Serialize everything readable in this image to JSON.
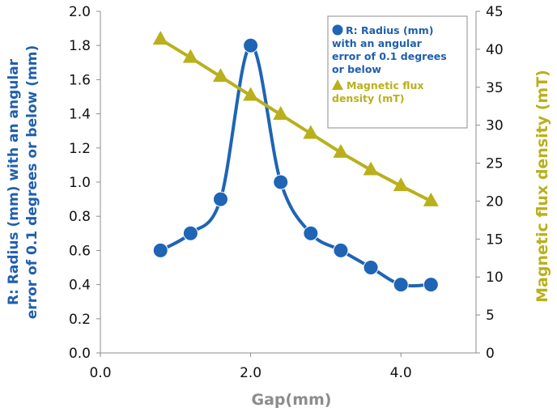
{
  "chart_data": {
    "type": "line",
    "title": "",
    "xlabel": "Gap(mm)",
    "ylabel": "R: Radius (mm) with an angular error of 0.1 degrees or below (mm)",
    "ylabel_lines": [
      "R: Radius (mm) with an angular",
      "error of 0.1 degrees or below (mm)"
    ],
    "y2label": "Magnetic flux density (mT)",
    "xlim": [
      0.0,
      5.0
    ],
    "ylim": [
      0.0,
      2.0
    ],
    "y2lim": [
      0,
      45
    ],
    "x_ticks": [
      0.0,
      2.0,
      4.0
    ],
    "x_tick_labels": [
      "0.0",
      "2.0",
      "4.0"
    ],
    "y_ticks": [
      0.0,
      0.2,
      0.4,
      0.6,
      0.8,
      1.0,
      1.2,
      1.4,
      1.6,
      1.8,
      2.0
    ],
    "y_tick_labels": [
      "0.0",
      "0.2",
      "0.4",
      "0.6",
      "0.8",
      "1.0",
      "1.2",
      "1.4",
      "1.6",
      "1.8",
      "2.0"
    ],
    "y2_ticks": [
      0,
      5,
      10,
      15,
      20,
      25,
      30,
      35,
      40,
      45
    ],
    "y2_tick_labels": [
      "0",
      "5",
      "10",
      "15",
      "20",
      "25",
      "30",
      "35",
      "40",
      "45"
    ],
    "grid": false,
    "legend_position": "top-right",
    "series": [
      {
        "name_lines": [
          "R: Radius (mm)",
          "with an angular",
          "error of 0.1 degrees",
          "or below"
        ],
        "axis": "left",
        "marker": "circle",
        "smooth": true,
        "color": "#1f64b5",
        "x": [
          0.8,
          1.2,
          1.6,
          2.0,
          2.4,
          2.8,
          3.2,
          3.6,
          4.0,
          4.4
        ],
        "values": [
          0.6,
          0.7,
          0.9,
          1.8,
          1.0,
          0.7,
          0.6,
          0.5,
          0.4,
          0.4
        ]
      },
      {
        "name_lines": [
          "Magnetic flux",
          "density (mT)"
        ],
        "axis": "right",
        "marker": "triangle",
        "smooth": false,
        "color": "#b9b01c",
        "x": [
          0.8,
          1.2,
          1.6,
          2.0,
          2.4,
          2.8,
          3.2,
          3.6,
          4.0,
          4.4
        ],
        "values": [
          41.3,
          38.9,
          36.4,
          33.9,
          31.4,
          28.9,
          26.4,
          24.1,
          22.0,
          20.0
        ]
      }
    ]
  },
  "colors": {
    "series_blue": "#1f64b5",
    "series_olive": "#b9b01c",
    "axis_line": "#8c8c8c",
    "legend_border": "#8c8c8c"
  }
}
